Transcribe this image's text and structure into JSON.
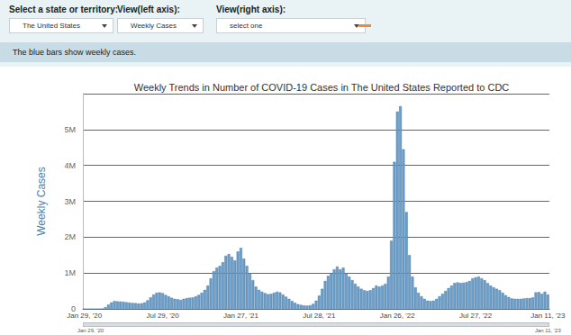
{
  "controls": [
    {
      "label": "Select a state or territory:",
      "value": "The United States"
    },
    {
      "label": "View(left axis):",
      "value": "Weekly Cases"
    },
    {
      "label": "View(right axis):",
      "value": "select one"
    }
  ],
  "banner": "The blue bars show weekly cases.",
  "range_slider": {
    "start": "Jan 29, '20",
    "end": "Jan 11, '23"
  },
  "chart_data": {
    "type": "bar",
    "title": "Weekly Trends in Number of COVID-19 Cases in The United States Reported to CDC",
    "y_label": "Weekly Cases",
    "color": "#6b9fca",
    "grid": true,
    "ylim": [
      0,
      6000000
    ],
    "yticks": [
      0,
      {
        "value": 1000000,
        "label": "1M"
      },
      {
        "value": 2000000,
        "label": "2M"
      },
      {
        "value": 3000000,
        "label": "3M"
      },
      {
        "value": 4000000,
        "label": "4M"
      },
      {
        "value": 5000000,
        "label": "5M"
      }
    ],
    "categories": [
      "Jan 29, '20",
      null,
      null,
      null,
      null,
      null,
      null,
      null,
      null,
      null,
      null,
      null,
      null,
      null,
      null,
      null,
      null,
      null,
      null,
      null,
      null,
      null,
      null,
      null,
      null,
      null,
      "Jul 29, '20",
      null,
      null,
      null,
      null,
      null,
      null,
      null,
      null,
      null,
      null,
      null,
      null,
      null,
      null,
      null,
      null,
      null,
      null,
      null,
      null,
      null,
      null,
      null,
      null,
      null,
      "Jan 27, '21",
      null,
      null,
      null,
      null,
      null,
      null,
      null,
      null,
      null,
      null,
      null,
      null,
      null,
      null,
      null,
      null,
      null,
      null,
      null,
      null,
      null,
      null,
      null,
      null,
      null,
      "Jul 28, '21",
      null,
      null,
      null,
      null,
      null,
      null,
      null,
      null,
      null,
      null,
      null,
      null,
      null,
      null,
      null,
      null,
      null,
      null,
      null,
      null,
      null,
      null,
      null,
      null,
      null,
      "Jan 26, '22",
      null,
      null,
      null,
      null,
      null,
      null,
      null,
      null,
      null,
      null,
      null,
      null,
      null,
      null,
      null,
      null,
      null,
      null,
      null,
      null,
      null,
      null,
      null,
      null,
      null,
      "Jul 27, '22",
      null,
      null,
      null,
      null,
      null,
      null,
      null,
      null,
      null,
      null,
      null,
      null,
      null,
      null,
      null,
      null,
      null,
      null,
      null,
      null,
      null,
      null,
      null,
      "Jan 11, '23"
    ],
    "values": [
      0,
      0,
      0,
      0,
      0,
      1000,
      10000,
      50000,
      120000,
      180000,
      220000,
      210000,
      205000,
      200000,
      185000,
      175000,
      165000,
      160000,
      150000,
      155000,
      180000,
      240000,
      320000,
      400000,
      450000,
      460000,
      440000,
      390000,
      350000,
      310000,
      280000,
      270000,
      250000,
      280000,
      300000,
      310000,
      320000,
      350000,
      390000,
      450000,
      530000,
      650000,
      850000,
      1050000,
      1150000,
      1200000,
      1300000,
      1480000,
      1530000,
      1450000,
      1350000,
      1600000,
      1700000,
      1400000,
      1200000,
      1000000,
      800000,
      620000,
      530000,
      480000,
      440000,
      410000,
      420000,
      450000,
      480000,
      460000,
      400000,
      340000,
      280000,
      220000,
      170000,
      130000,
      110000,
      95000,
      90000,
      100000,
      140000,
      230000,
      370000,
      560000,
      780000,
      920000,
      1000000,
      1100000,
      1180000,
      1100000,
      1150000,
      1000000,
      900000,
      800000,
      700000,
      620000,
      560000,
      520000,
      500000,
      520000,
      580000,
      650000,
      620000,
      650000,
      700000,
      900000,
      1900000,
      4100000,
      5500000,
      5650000,
      4450000,
      2700000,
      1500000,
      900000,
      600000,
      450000,
      350000,
      280000,
      230000,
      220000,
      230000,
      280000,
      350000,
      420000,
      500000,
      580000,
      650000,
      720000,
      740000,
      720000,
      730000,
      750000,
      780000,
      850000,
      880000,
      900000,
      850000,
      800000,
      720000,
      650000,
      600000,
      560000,
      520000,
      450000,
      380000,
      330000,
      290000,
      280000,
      280000,
      280000,
      290000,
      300000,
      300000,
      320000,
      460000,
      470000,
      420000,
      480000,
      400000
    ]
  }
}
